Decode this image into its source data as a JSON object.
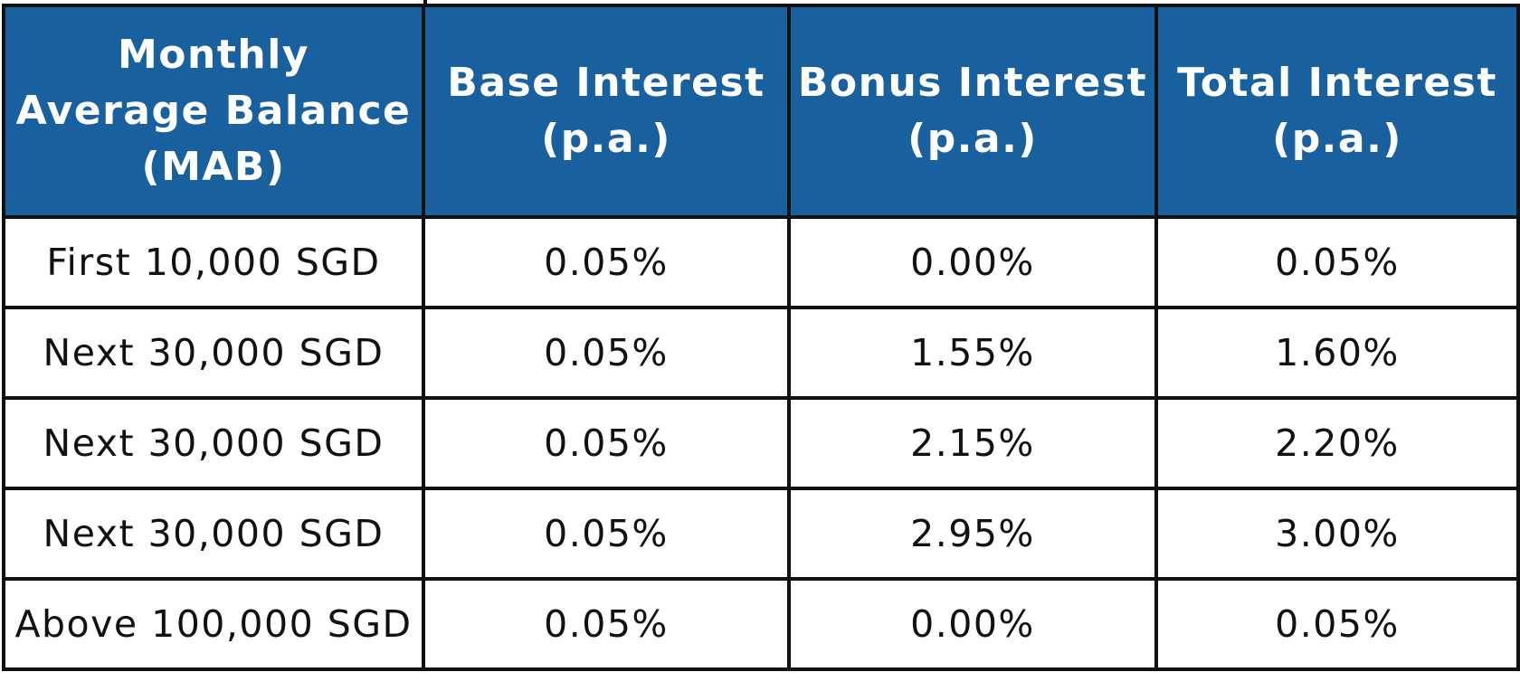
{
  "table": {
    "headers": [
      {
        "lines": [
          "Monthly",
          "Average Balance",
          "(MAB)"
        ]
      },
      {
        "lines": [
          "Base Interest",
          "(p.a.)"
        ]
      },
      {
        "lines": [
          "Bonus Interest",
          "(p.a.)"
        ]
      },
      {
        "lines": [
          "Total Interest",
          "(p.a.)"
        ]
      }
    ],
    "rows": [
      [
        "First 10,000 SGD",
        "0.05%",
        "0.00%",
        "0.05%"
      ],
      [
        "Next 30,000 SGD",
        "0.05%",
        "1.55%",
        "1.60%"
      ],
      [
        "Next 30,000 SGD",
        "0.05%",
        "2.15%",
        "2.20%"
      ],
      [
        "Next 30,000 SGD",
        "0.05%",
        "2.95%",
        "3.00%"
      ],
      [
        "Above 100,000 SGD",
        "0.05%",
        "0.00%",
        "0.05%"
      ]
    ]
  },
  "colors": {
    "header_background": "#18609e",
    "header_text": "#ffffff",
    "border": "#111111",
    "body_text": "#111111"
  }
}
